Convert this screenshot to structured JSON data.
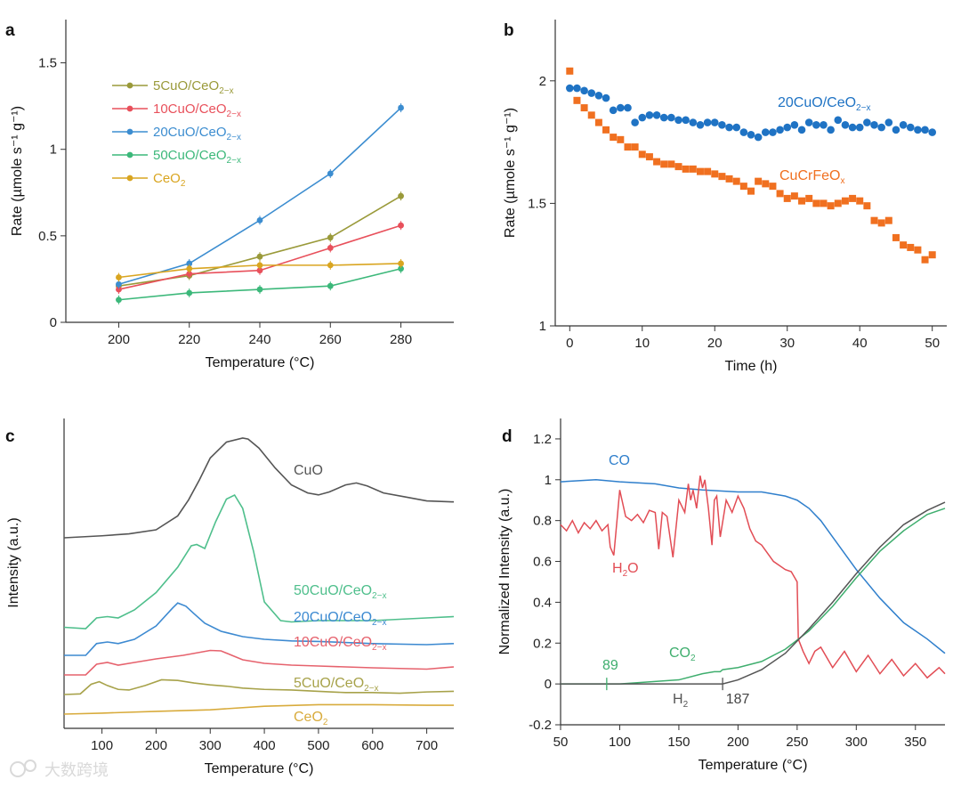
{
  "chart_data": [
    {
      "panel": "a",
      "type": "line",
      "xlabel": "Temperature (°C)",
      "ylabel": "Rate (µmole s⁻¹ g⁻¹)",
      "xlim": [
        185,
        295
      ],
      "ylim": [
        0,
        1.75
      ],
      "xticks": [
        "200",
        "220",
        "240",
        "260",
        "280"
      ],
      "yticks": [
        "0",
        "0.5",
        "1",
        "1.5"
      ],
      "categories": [
        200,
        220,
        240,
        260,
        280
      ],
      "series": [
        {
          "name": "5CuO/CeO2−x",
          "base": "5CuO/CeO",
          "sub": "2−x",
          "color": "#9a9a3a",
          "values": [
            0.21,
            0.27,
            0.38,
            0.49,
            0.73
          ]
        },
        {
          "name": "10CuO/CeO2−x",
          "base": "10CuO/CeO",
          "sub": "2−x",
          "color": "#e8505b",
          "values": [
            0.19,
            0.28,
            0.3,
            0.43,
            0.56
          ]
        },
        {
          "name": "20CuO/CeO2−x",
          "base": "20CuO/CeO",
          "sub": "2−x",
          "color": "#3c8dd0",
          "values": [
            0.22,
            0.34,
            0.59,
            0.86,
            1.24
          ]
        },
        {
          "name": "50CuO/CeO2−x",
          "base": "50CuO/CeO",
          "sub": "2−x",
          "color": "#3cb87a",
          "values": [
            0.13,
            0.17,
            0.19,
            0.21,
            0.31
          ]
        },
        {
          "name": "CeO2",
          "base": "CeO",
          "sub": "2",
          "color": "#d9a520",
          "values": [
            0.26,
            0.31,
            0.33,
            0.33,
            0.34
          ]
        }
      ]
    },
    {
      "panel": "b",
      "type": "scatter",
      "xlabel": "Time (h)",
      "ylabel": "Rate (µmole s⁻¹ g⁻¹)",
      "xlim": [
        -2,
        52
      ],
      "ylim": [
        1,
        2.25
      ],
      "xticks": [
        "0",
        "10",
        "20",
        "30",
        "40",
        "50"
      ],
      "yticks": [
        "1",
        "1.5",
        "2"
      ],
      "series": [
        {
          "name": "20CuO/CeO2−x",
          "base": "20CuO/CeO",
          "sub": "2−x",
          "color": "#1f73c4",
          "marker": "circle",
          "x": [
            0,
            1,
            2,
            3,
            4,
            5,
            6,
            7,
            8,
            9,
            10,
            11,
            12,
            13,
            14,
            15,
            16,
            17,
            18,
            19,
            20,
            21,
            22,
            23,
            24,
            25,
            26,
            27,
            28,
            29,
            30,
            31,
            32,
            33,
            34,
            35,
            36,
            37,
            38,
            39,
            40,
            41,
            42,
            43,
            44,
            45,
            46,
            47,
            48,
            49,
            50
          ],
          "y": [
            1.97,
            1.97,
            1.96,
            1.95,
            1.94,
            1.93,
            1.88,
            1.89,
            1.89,
            1.83,
            1.85,
            1.86,
            1.86,
            1.85,
            1.85,
            1.84,
            1.84,
            1.83,
            1.82,
            1.83,
            1.83,
            1.82,
            1.81,
            1.81,
            1.79,
            1.78,
            1.77,
            1.79,
            1.79,
            1.8,
            1.81,
            1.82,
            1.8,
            1.83,
            1.82,
            1.82,
            1.8,
            1.84,
            1.82,
            1.81,
            1.81,
            1.83,
            1.82,
            1.81,
            1.83,
            1.8,
            1.82,
            1.81,
            1.8,
            1.8,
            1.79
          ]
        },
        {
          "name": "CuCrFeOx",
          "base": "CuCrFeO",
          "sub": "x",
          "color": "#f07020",
          "marker": "square",
          "x": [
            0,
            1,
            2,
            3,
            4,
            5,
            6,
            7,
            8,
            9,
            10,
            11,
            12,
            13,
            14,
            15,
            16,
            17,
            18,
            19,
            20,
            21,
            22,
            23,
            24,
            25,
            26,
            27,
            28,
            29,
            30,
            31,
            32,
            33,
            34,
            35,
            36,
            37,
            38,
            39,
            40,
            41,
            42,
            43,
            44,
            45,
            46,
            47,
            48,
            49,
            50
          ],
          "y": [
            2.04,
            1.92,
            1.89,
            1.86,
            1.83,
            1.8,
            1.77,
            1.76,
            1.73,
            1.73,
            1.7,
            1.69,
            1.67,
            1.66,
            1.66,
            1.65,
            1.64,
            1.64,
            1.63,
            1.63,
            1.62,
            1.61,
            1.6,
            1.59,
            1.57,
            1.55,
            1.59,
            1.58,
            1.57,
            1.54,
            1.52,
            1.53,
            1.51,
            1.52,
            1.5,
            1.5,
            1.49,
            1.5,
            1.51,
            1.52,
            1.51,
            1.49,
            1.43,
            1.42,
            1.43,
            1.36,
            1.33,
            1.32,
            1.31,
            1.27,
            1.29
          ]
        }
      ]
    },
    {
      "panel": "c",
      "type": "line",
      "xlabel": "Temperature (°C)",
      "ylabel": "Intensity (a.u.)",
      "xlim": [
        30,
        750
      ],
      "xticks": [
        "100",
        "200",
        "300",
        "400",
        "500",
        "600",
        "700"
      ],
      "series": [
        {
          "name": "CuO",
          "base": "CuO",
          "sub": "",
          "color": "#555555",
          "offset": 198,
          "scale": 112,
          "x": [
            30,
            100,
            150,
            200,
            240,
            260,
            280,
            300,
            330,
            360,
            370,
            390,
            420,
            450,
            480,
            500,
            520,
            550,
            570,
            590,
            620,
            660,
            700,
            750
          ],
          "y": [
            0,
            0.02,
            0.04,
            0.08,
            0.22,
            0.38,
            0.58,
            0.8,
            0.96,
            1.0,
            0.99,
            0.9,
            0.7,
            0.53,
            0.45,
            0.43,
            0.46,
            0.53,
            0.55,
            0.52,
            0.45,
            0.41,
            0.37,
            0.36
          ]
        },
        {
          "name": "50CuO/CeO2−x",
          "base": "50CuO/CeO",
          "sub": "2−x",
          "color": "#4fbf8c",
          "offset": 96,
          "scale": 150,
          "x": [
            30,
            70,
            90,
            110,
            130,
            160,
            200,
            240,
            265,
            275,
            290,
            310,
            330,
            345,
            360,
            380,
            400,
            430,
            450,
            500,
            600,
            700,
            750
          ],
          "y": [
            0.01,
            0.0,
            0.08,
            0.09,
            0.08,
            0.14,
            0.27,
            0.46,
            0.62,
            0.63,
            0.6,
            0.8,
            0.97,
            1.0,
            0.9,
            0.58,
            0.2,
            0.06,
            0.05,
            0.06,
            0.06,
            0.08,
            0.09
          ]
        },
        {
          "name": "20CuO/CeO2−x",
          "base": "20CuO/CeO",
          "sub": "2−x",
          "color": "#3d8ad1",
          "offset": 66,
          "scale": 60,
          "x": [
            30,
            70,
            90,
            110,
            130,
            160,
            200,
            230,
            240,
            255,
            270,
            290,
            320,
            360,
            400,
            450,
            500,
            600,
            700,
            750
          ],
          "y": [
            0,
            0,
            0.22,
            0.25,
            0.22,
            0.3,
            0.55,
            0.88,
            0.98,
            0.92,
            0.78,
            0.6,
            0.45,
            0.35,
            0.3,
            0.27,
            0.26,
            0.22,
            0.2,
            0.22
          ]
        },
        {
          "name": "10CuO/CeO2−x",
          "base": "10CuO/CeO",
          "sub": "2−x",
          "color": "#e6626d",
          "offset": 44,
          "scale": 50,
          "x": [
            30,
            70,
            90,
            110,
            130,
            160,
            200,
            250,
            300,
            320,
            340,
            360,
            400,
            450,
            500,
            600,
            700,
            750
          ],
          "y": [
            0,
            0,
            0.24,
            0.28,
            0.22,
            0.28,
            0.36,
            0.44,
            0.55,
            0.54,
            0.44,
            0.34,
            0.26,
            0.22,
            0.2,
            0.16,
            0.13,
            0.18
          ]
        },
        {
          "name": "5CuO/CeO2−x",
          "base": "5CuO/CeO",
          "sub": "2−x",
          "color": "#a7a24a",
          "offset": 22,
          "scale": 36,
          "x": [
            30,
            60,
            80,
            95,
            110,
            130,
            150,
            180,
            210,
            240,
            270,
            300,
            330,
            360,
            400,
            450,
            500,
            550,
            600,
            650,
            700,
            750
          ],
          "y": [
            0,
            0.02,
            0.32,
            0.4,
            0.28,
            0.16,
            0.14,
            0.28,
            0.46,
            0.44,
            0.36,
            0.3,
            0.26,
            0.2,
            0.16,
            0.14,
            0.1,
            0.06,
            0.06,
            0.04,
            0.08,
            0.1
          ]
        },
        {
          "name": "CeO2",
          "base": "CeO",
          "sub": "2",
          "color": "#d8ab3c",
          "offset": 0,
          "scale": 22,
          "x": [
            30,
            100,
            200,
            300,
            400,
            500,
            600,
            700,
            750
          ],
          "y": [
            0,
            0.05,
            0.14,
            0.22,
            0.4,
            0.48,
            0.48,
            0.45,
            0.45
          ]
        }
      ]
    },
    {
      "panel": "d",
      "type": "line",
      "xlabel": "Temperature (°C)",
      "ylabel": "Normalized Intensity (a.u.)",
      "xlim": [
        50,
        375
      ],
      "ylim": [
        -0.2,
        1.3
      ],
      "xticks": [
        "50",
        "100",
        "150",
        "200",
        "250",
        "300",
        "350"
      ],
      "yticks": [
        "-0.2",
        "0",
        "0.2",
        "0.4",
        "0.6",
        "0.8",
        "1",
        "1.2"
      ],
      "annotations": [
        {
          "text": "89",
          "x": 89
        },
        {
          "text": "187",
          "x": 187
        }
      ],
      "series": [
        {
          "name": "CO",
          "base": "CO",
          "sub": "",
          "color": "#2f7fcc",
          "x": [
            50,
            80,
            100,
            130,
            150,
            170,
            200,
            220,
            240,
            250,
            260,
            270,
            280,
            300,
            320,
            340,
            360,
            375
          ],
          "y": [
            0.99,
            1.0,
            0.99,
            0.98,
            0.96,
            0.95,
            0.94,
            0.94,
            0.92,
            0.9,
            0.86,
            0.8,
            0.72,
            0.56,
            0.42,
            0.3,
            0.22,
            0.15
          ]
        },
        {
          "name": "H2O",
          "base": "H",
          "sub": "2",
          "suffix": "O",
          "color": "#e24d55",
          "x": [
            50,
            55,
            60,
            65,
            70,
            75,
            80,
            85,
            90,
            92,
            95,
            98,
            100,
            105,
            110,
            115,
            120,
            125,
            130,
            133,
            136,
            140,
            145,
            150,
            155,
            158,
            160,
            162,
            165,
            168,
            170,
            172,
            175,
            178,
            180,
            182,
            185,
            190,
            195,
            200,
            205,
            210,
            215,
            220,
            230,
            240,
            245,
            248,
            250,
            251,
            255,
            260,
            265,
            270,
            280,
            290,
            300,
            310,
            320,
            330,
            340,
            350,
            360,
            370,
            375
          ],
          "y": [
            0.78,
            0.75,
            0.8,
            0.74,
            0.79,
            0.76,
            0.8,
            0.75,
            0.78,
            0.67,
            0.63,
            0.82,
            0.95,
            0.82,
            0.8,
            0.83,
            0.79,
            0.85,
            0.84,
            0.66,
            0.84,
            0.82,
            0.62,
            0.9,
            0.84,
            0.98,
            0.9,
            0.95,
            0.86,
            1.02,
            0.96,
            1.0,
            0.86,
            0.68,
            0.9,
            0.92,
            0.72,
            0.9,
            0.84,
            0.92,
            0.86,
            0.76,
            0.7,
            0.68,
            0.6,
            0.56,
            0.55,
            0.52,
            0.5,
            0.22,
            0.16,
            0.1,
            0.16,
            0.18,
            0.08,
            0.16,
            0.06,
            0.14,
            0.05,
            0.12,
            0.04,
            0.1,
            0.03,
            0.08,
            0.05
          ]
        },
        {
          "name": "CO2",
          "base": "CO",
          "sub": "2",
          "color": "#3fae6e",
          "x": [
            50,
            89,
            100,
            150,
            170,
            180,
            185,
            187,
            200,
            220,
            240,
            260,
            280,
            300,
            320,
            340,
            360,
            375
          ],
          "y": [
            0.0,
            0.0,
            0.0,
            0.02,
            0.05,
            0.06,
            0.06,
            0.07,
            0.08,
            0.11,
            0.17,
            0.26,
            0.38,
            0.52,
            0.65,
            0.75,
            0.83,
            0.86
          ]
        },
        {
          "name": "H2",
          "base": "H",
          "sub": "2",
          "color": "#555555",
          "x": [
            50,
            100,
            150,
            187,
            200,
            220,
            240,
            260,
            280,
            300,
            320,
            340,
            360,
            375
          ],
          "y": [
            0.0,
            0.0,
            0.0,
            0.0,
            0.02,
            0.07,
            0.15,
            0.27,
            0.4,
            0.54,
            0.67,
            0.78,
            0.85,
            0.89
          ]
        }
      ]
    }
  ],
  "panels": {
    "a": {
      "letter": "a"
    },
    "b": {
      "letter": "b"
    },
    "c": {
      "letter": "c"
    },
    "d": {
      "letter": "d"
    }
  },
  "watermark": "大数跨境"
}
